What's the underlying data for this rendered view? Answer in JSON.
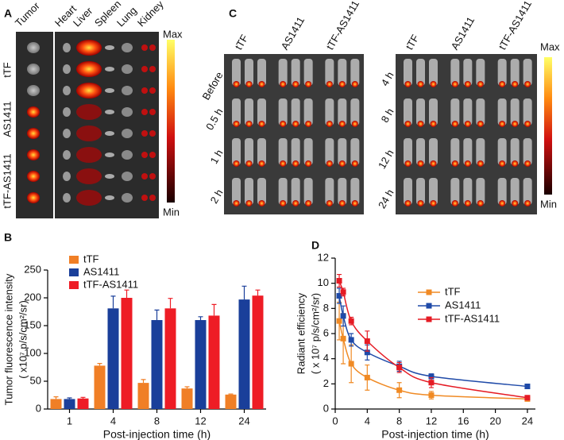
{
  "panel_a": {
    "label": "A",
    "columns": [
      "Tumor",
      "Heart",
      "Liver",
      "Spleen",
      "Lung",
      "Kidney"
    ],
    "rows": [
      "tTF",
      "AS1411",
      "tTF-AS1411"
    ],
    "scale": [
      "Max",
      "Min"
    ]
  },
  "panel_c": {
    "label": "C",
    "left_columns": [
      "tTF",
      "AS1411",
      "tTF-AS1411"
    ],
    "right_columns": [
      "tTF",
      "AS1411",
      "tTF-AS1411"
    ],
    "left_rows": [
      "Before",
      "0.5 h",
      "1 h",
      "2 h"
    ],
    "right_rows": [
      "4 h",
      "8 h",
      "12 h",
      "24 h"
    ],
    "scale": [
      "Max",
      "Min"
    ]
  },
  "chart_data": [
    {
      "type": "bar",
      "panel_label": "B",
      "y_label": [
        "Tumor fluorescence intensity",
        "( x10⁷ p/s/cm²/sr)"
      ],
      "x_label": "Post-injection time (h)",
      "categories": [
        "1",
        "4",
        "8",
        "12",
        "24"
      ],
      "series": [
        {
          "name": "tTF",
          "color": "#f07f26",
          "values": [
            18,
            78,
            47,
            37,
            26
          ],
          "errors": [
            4,
            4,
            6,
            3,
            1
          ]
        },
        {
          "name": "AS1411",
          "color": "#1a3f9a",
          "values": [
            18,
            181,
            160,
            160,
            197
          ],
          "errors": [
            2,
            22,
            18,
            6,
            24
          ]
        },
        {
          "name": "tTF-AS1411",
          "color": "#ee1c25",
          "values": [
            19,
            200,
            181,
            168,
            204
          ],
          "errors": [
            2,
            14,
            18,
            20,
            10
          ]
        }
      ],
      "ylim": [
        0,
        250
      ],
      "yticks": [
        0,
        50,
        100,
        150,
        200,
        250
      ],
      "legend": "upper left"
    },
    {
      "type": "line",
      "panel_label": "D",
      "y_label": [
        "Radiant efficiency",
        "( x 10⁷ p/s/cm²/sr)"
      ],
      "x_label": "Post-injection time (h)",
      "x": [
        0.5,
        1,
        2,
        4,
        8,
        12,
        24
      ],
      "series": [
        {
          "name": "tTF",
          "color": "#f08a24",
          "values": [
            7,
            5.6,
            3.6,
            2.5,
            1.5,
            1.1,
            0.8
          ],
          "errors": [
            1.5,
            2,
            1.5,
            1,
            0.6,
            0.3,
            0.1
          ]
        },
        {
          "name": "AS1411",
          "color": "#1f4aa8",
          "values": [
            9,
            7.4,
            5.5,
            4.5,
            3.4,
            2.6,
            1.8
          ],
          "errors": [
            0.6,
            0.8,
            0.5,
            0.6,
            0.4,
            0.2,
            0.1
          ]
        },
        {
          "name": "tTF-AS1411",
          "color": "#e51b24",
          "values": [
            10.2,
            9.3,
            7,
            5.4,
            3.3,
            2.1,
            0.9
          ],
          "errors": [
            0.5,
            0.3,
            0.3,
            0.8,
            0.4,
            0.4,
            0.1
          ]
        }
      ],
      "xlim": [
        0,
        25
      ],
      "xticks": [
        0,
        4,
        8,
        12,
        16,
        20,
        24
      ],
      "ylim": [
        0,
        12
      ],
      "yticks": [
        0,
        2,
        4,
        6,
        8,
        10,
        12
      ],
      "legend": "upper right"
    }
  ]
}
